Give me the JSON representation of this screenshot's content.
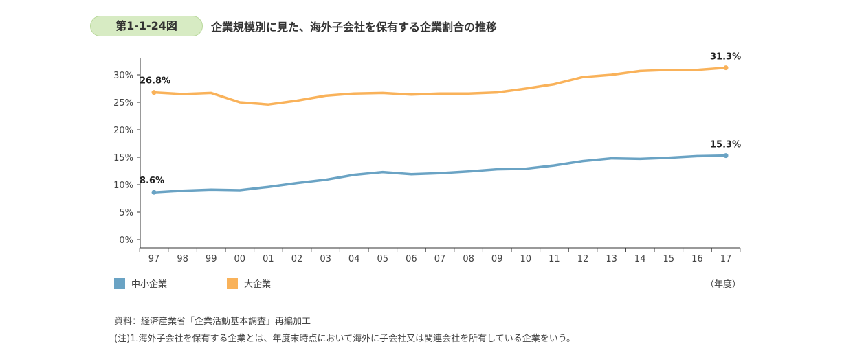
{
  "figure": {
    "number": "第1-1-24図",
    "title": "企業規模別に見た、海外子会社を保有する企業割合の推移"
  },
  "chart_data": {
    "type": "line",
    "x": [
      "97",
      "98",
      "99",
      "00",
      "01",
      "02",
      "03",
      "04",
      "05",
      "06",
      "07",
      "08",
      "09",
      "10",
      "11",
      "12",
      "13",
      "14",
      "15",
      "16",
      "17"
    ],
    "y_ticks": [
      "0%",
      "5%",
      "10%",
      "15%",
      "20%",
      "25%",
      "30%"
    ],
    "ylim": [
      0,
      35
    ],
    "x_unit": "（年度）",
    "series": [
      {
        "name": "中小企業",
        "color": "#6aa3c4",
        "values": [
          8.6,
          8.9,
          9.1,
          9.0,
          9.6,
          10.3,
          10.9,
          11.8,
          12.3,
          11.9,
          12.1,
          12.4,
          12.8,
          12.9,
          13.5,
          14.3,
          14.8,
          14.7,
          14.9,
          15.2,
          15.3
        ],
        "start_label": "8.6%",
        "end_label": "15.3%"
      },
      {
        "name": "大企業",
        "color": "#f9b25a",
        "values": [
          26.8,
          26.5,
          26.7,
          25.0,
          24.6,
          25.3,
          26.2,
          26.6,
          26.7,
          26.4,
          26.6,
          26.6,
          26.8,
          27.5,
          28.3,
          29.6,
          30.0,
          30.7,
          30.9,
          30.9,
          31.3
        ],
        "start_label": "26.8%",
        "end_label": "31.3%"
      }
    ]
  },
  "source": "資料：経済産業省「企業活動基本調査」再編加工",
  "note": "(注)1.海外子会社を保有する企業とは、年度末時点において海外に子会社又は関連会社を所有している企業をいう。"
}
